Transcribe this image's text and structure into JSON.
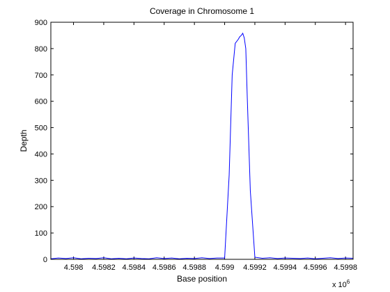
{
  "chart_data": {
    "type": "line",
    "title": "Coverage in Chromosome 1",
    "xlabel": "Base position",
    "ylabel": "Depth",
    "x_exponent_label": "x 10",
    "x_exponent_power": "6",
    "xlim": [
      4.59785,
      4.59985
    ],
    "ylim": [
      0,
      900
    ],
    "x_ticks": [
      4.598,
      4.5982,
      4.5984,
      4.5986,
      4.5988,
      4.599,
      4.5992,
      4.5994,
      4.5996,
      4.5998
    ],
    "x_tick_labels": [
      "4.598",
      "4.5982",
      "4.5984",
      "4.5986",
      "4.5988",
      "4.599",
      "4.5992",
      "4.5994",
      "4.5996",
      "4.5998"
    ],
    "y_ticks": [
      0,
      100,
      200,
      300,
      400,
      500,
      600,
      700,
      800,
      900
    ],
    "y_tick_labels": [
      "0",
      "100",
      "200",
      "300",
      "400",
      "500",
      "600",
      "700",
      "800",
      "900"
    ],
    "grid": false,
    "line_color": "#0000ff",
    "series": [
      {
        "x": [
          4.59785,
          4.5979,
          4.59795,
          4.598,
          4.59805,
          4.5981,
          4.59815,
          4.5982,
          4.59825,
          4.5983,
          4.59835,
          4.5984,
          4.59845,
          4.5985,
          4.59855,
          4.5986,
          4.59865,
          4.5987,
          4.59875,
          4.5988,
          4.59885,
          4.5989,
          4.59895,
          4.599,
          4.59903,
          4.59905,
          4.59907,
          4.59909,
          4.5991,
          4.59911,
          4.59912,
          4.59913,
          4.59914,
          4.59915,
          4.59917,
          4.5992,
          4.59925,
          4.5993,
          4.59935,
          4.5994,
          4.59945,
          4.5995,
          4.59955,
          4.5996,
          4.59965,
          4.5997,
          4.59975,
          4.5998,
          4.59985
        ],
        "y": [
          2,
          5,
          3,
          6,
          2,
          4,
          3,
          6,
          2,
          4,
          2,
          5,
          3,
          2,
          6,
          3,
          5,
          2,
          4,
          3,
          6,
          3,
          5,
          5,
          320,
          700,
          820,
          835,
          845,
          850,
          858,
          840,
          800,
          610,
          260,
          8,
          4,
          6,
          3,
          5,
          4,
          3,
          5,
          2,
          4,
          6,
          3,
          5,
          4
        ]
      }
    ]
  }
}
